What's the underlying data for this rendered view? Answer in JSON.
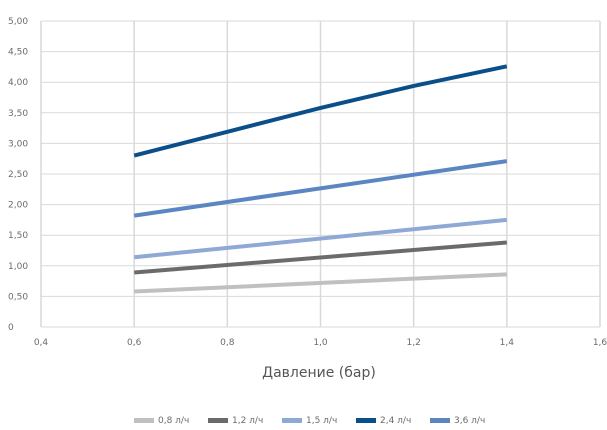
{
  "chart_data": {
    "type": "line",
    "xlabel": "Давление (бар)",
    "ylabel": "",
    "xlim": [
      0.4,
      1.6
    ],
    "ylim": [
      0,
      5.0
    ],
    "xticks": [
      0.4,
      0.6,
      0.8,
      1.0,
      1.2,
      1.4,
      1.6
    ],
    "xtick_labels": [
      "0,4",
      "0,6",
      "0,8",
      "1,0",
      "1,2",
      "1,4",
      "1,6"
    ],
    "yticks": [
      0,
      0.5,
      1.0,
      1.5,
      2.0,
      2.5,
      3.0,
      3.5,
      4.0,
      4.5,
      5.0
    ],
    "ytick_labels": [
      "0",
      "0,50",
      "1,00",
      "1,50",
      "2,00",
      "2,50",
      "3,00",
      "3,50",
      "4,00",
      "4,50",
      "5,00"
    ],
    "grid": true,
    "legend_position": "bottom",
    "series": [
      {
        "name": "0,8 л/ч",
        "color": "#c0c0c0",
        "x": [
          0.6,
          1.4
        ],
        "y": [
          0.58,
          0.86
        ]
      },
      {
        "name": "1,2 л/ч",
        "color": "#6b6b6b",
        "x": [
          0.6,
          1.4
        ],
        "y": [
          0.89,
          1.38
        ]
      },
      {
        "name": "1,5 л/ч",
        "color": "#8ea9d4",
        "x": [
          0.6,
          1.4
        ],
        "y": [
          1.14,
          1.75
        ]
      },
      {
        "name": "2,4 л/ч",
        "color": "#0b4f8a",
        "x": [
          0.6,
          0.8,
          1.0,
          1.1,
          1.2,
          1.4
        ],
        "y": [
          2.8,
          3.19,
          3.58,
          3.76,
          3.94,
          4.26
        ]
      },
      {
        "name": "3,6 л/ч",
        "color": "#5c86c2",
        "x": [
          0.6,
          1.4
        ],
        "y": [
          1.82,
          2.71
        ]
      }
    ]
  }
}
